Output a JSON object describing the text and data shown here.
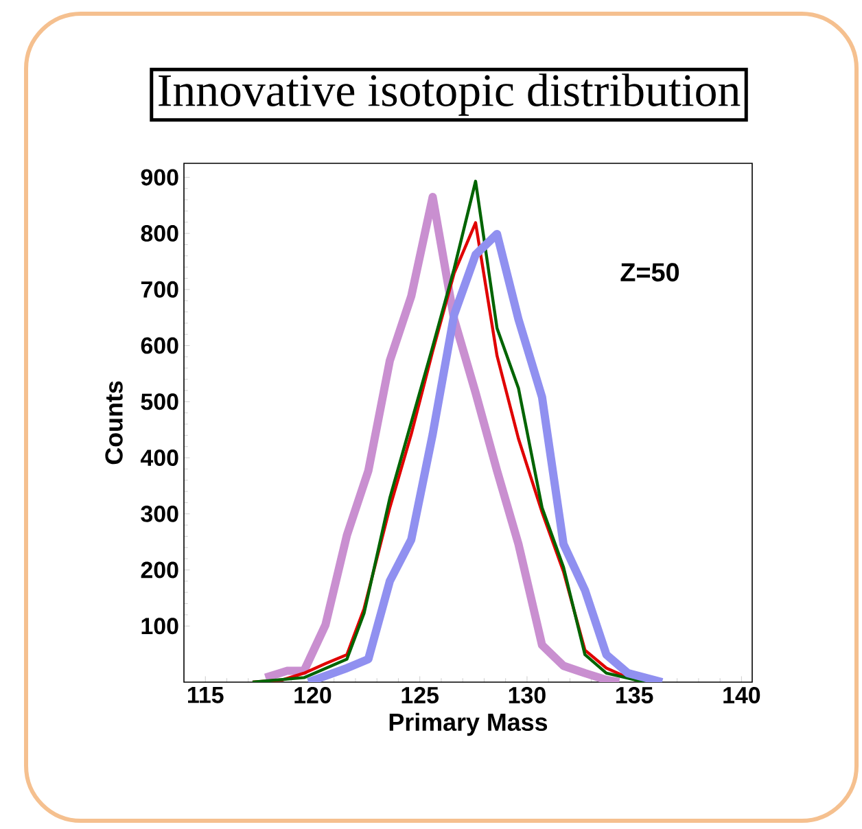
{
  "chart_data": {
    "type": "line",
    "title": "Innovative isotopic distribution",
    "xlabel": "Primary Mass",
    "ylabel": "Counts",
    "annotations": [
      "Z=50"
    ],
    "xlim": [
      114,
      140.5
    ],
    "xticks": [
      115,
      120,
      125,
      130,
      135,
      140
    ],
    "ylim": [
      0,
      925
    ],
    "yticks": [
      100,
      200,
      300,
      400,
      500,
      600,
      700,
      800,
      900
    ],
    "grid": false,
    "marker": "none",
    "line_style": "solid",
    "series": [
      {
        "color": "#c98fd0",
        "x": [
          117.8,
          118.8,
          119.6,
          120.6,
          121.6,
          122.6,
          123.6,
          124.6,
          125.6,
          126.6,
          127.6,
          128.6,
          129.6,
          130.7,
          131.7,
          132.7,
          133.7,
          134.3
        ],
        "values": [
          8,
          20,
          20,
          102,
          262,
          377,
          573,
          688,
          865,
          647,
          516,
          377,
          246,
          66,
          29,
          16,
          4,
          0
        ]
      },
      {
        "color": "#e00000",
        "x": [
          117.2,
          118.6,
          119.6,
          120.6,
          121.6,
          122.4,
          123.6,
          124.6,
          125.6,
          126.6,
          127.6,
          128.6,
          129.6,
          130.7,
          131.7,
          132.7,
          133.7,
          134.7,
          135.5
        ],
        "values": [
          0,
          4,
          16,
          33,
          49,
          131,
          311,
          442,
          590,
          729,
          819,
          582,
          434,
          303,
          197,
          57,
          25,
          8,
          0
        ]
      },
      {
        "color": "#006400",
        "x": [
          117.2,
          119.6,
          121.6,
          122.4,
          123.6,
          125.6,
          126.6,
          127.6,
          128.6,
          129.6,
          130.7,
          131.7,
          132.7,
          133.7,
          135.5
        ],
        "values": [
          0,
          8,
          41,
          123,
          328,
          598,
          737,
          893,
          631,
          524,
          311,
          205,
          49,
          16,
          0
        ]
      },
      {
        "color": "#9090f0",
        "x": [
          119.8,
          121.6,
          122.6,
          123.6,
          124.6,
          125.6,
          126.6,
          127.6,
          128.6,
          129.6,
          130.7,
          131.7,
          132.7,
          133.7,
          134.7,
          136.3
        ],
        "values": [
          0,
          25,
          41,
          180,
          254,
          442,
          655,
          762,
          799,
          647,
          508,
          246,
          164,
          49,
          16,
          0
        ]
      }
    ]
  }
}
